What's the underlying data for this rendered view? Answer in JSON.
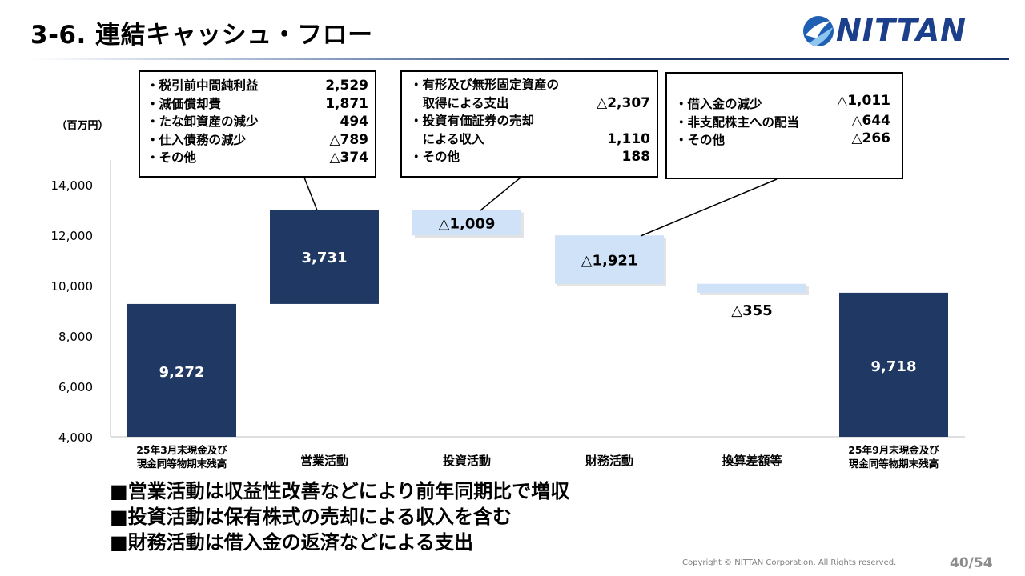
{
  "header": {
    "title": "3-6. 連結キャッシュ・フロー",
    "logo_text": "NITTAN",
    "logo_icon": "nittan-swirl-icon"
  },
  "chart_data": {
    "type": "waterfall",
    "unit_label": "（百万円）",
    "ylim": [
      4000,
      14000
    ],
    "y_ticks": [
      "4,000",
      "6,000",
      "8,000",
      "10,000",
      "12,000",
      "14,000"
    ],
    "y_tick_values": [
      4000,
      6000,
      8000,
      10000,
      12000,
      14000
    ],
    "steps": [
      {
        "label": [
          "25年3月末現金及び",
          "現金同等物期末残高"
        ],
        "kind": "total",
        "start": 4000,
        "end": 9272,
        "value_label": "9,272",
        "color": "#1f3864"
      },
      {
        "label": [
          "営業活動"
        ],
        "kind": "increase",
        "start": 9272,
        "end": 13003,
        "value_label": "3,731",
        "color": "#1f3864"
      },
      {
        "label": [
          "投資活動"
        ],
        "kind": "decrease",
        "start": 13003,
        "end": 11994,
        "value_label": "△1,009",
        "color": "#cfe2f7"
      },
      {
        "label": [
          "財務活動"
        ],
        "kind": "decrease",
        "start": 11994,
        "end": 10073,
        "value_label": "△1,921",
        "color": "#cfe2f7"
      },
      {
        "label": [
          "換算差額等"
        ],
        "kind": "decrease",
        "start": 10073,
        "end": 9718,
        "value_label": "△355",
        "color": "#cfe2f7"
      },
      {
        "label": [
          "25年9月末現金及び",
          "現金同等物期末残高"
        ],
        "kind": "total",
        "start": 4000,
        "end": 9718,
        "value_label": "9,718",
        "color": "#1f3864"
      }
    ],
    "callouts": [
      {
        "rows": [
          {
            "text": "・税引前中間純利益",
            "value": "2,529"
          },
          {
            "text": "・減価償却費",
            "value": "1,871"
          },
          {
            "text": "・たな卸資産の減少",
            "value": "494"
          },
          {
            "text": "・仕入債務の減少",
            "value": "△789"
          },
          {
            "text": "・その他",
            "value": "△374"
          }
        ]
      },
      {
        "rows": [
          {
            "text": "・有形及び無形固定資産の",
            "value": ""
          },
          {
            "text": "　取得による支出",
            "value": "△2,307"
          },
          {
            "text": "・投資有価証券の売却",
            "value": ""
          },
          {
            "text": "　による収入",
            "value": "1,110"
          },
          {
            "text": "・その他",
            "value": "188"
          }
        ]
      },
      {
        "rows": [
          {
            "text": "・借入金の減少",
            "value": "△1,011"
          },
          {
            "text": "・非支配株主への配当",
            "value": "△644"
          },
          {
            "text": "・その他",
            "value": "△266"
          }
        ]
      }
    ]
  },
  "bullets": [
    "■営業活動は収益性改善などにより前年同期比で増収",
    "■投資活動は保有株式の売却による収入を含む",
    "■財務活動は借入金の返済などによる支出"
  ],
  "footer": {
    "copyright": "Copyright © NITTAN Corporation. All Rights reserved.",
    "page": "40/54"
  }
}
